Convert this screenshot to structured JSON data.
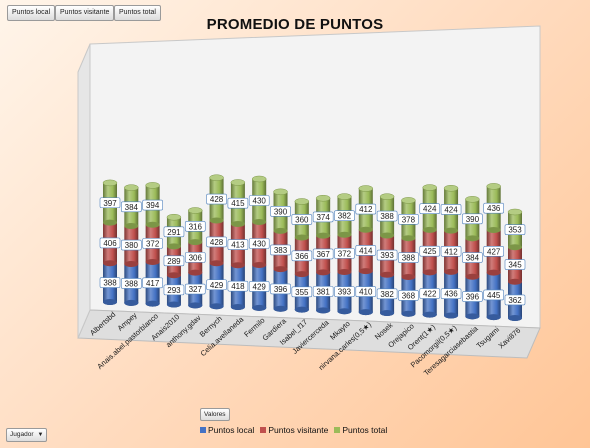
{
  "pivot_buttons": [
    "Puntos local",
    "Puntos visitante",
    "Puntos total"
  ],
  "valores_label": "Valores",
  "jugador_label": "Jugador",
  "colors": {
    "local": "#4472c4",
    "visitante": "#c0504d",
    "total": "#9bbb59"
  },
  "chart_data": {
    "type": "bar",
    "stacked": true,
    "style": "3d-cylinder",
    "title": "PROMEDIO DE PUNTOS",
    "xlabel": "",
    "ylabel": "",
    "legend_position": "bottom",
    "categories": [
      "Albertsbd",
      "Ampey",
      "Anais.abel.pastorblanco",
      "Anais2010",
      "anthony.gdav",
      "Bernych",
      "Celia.avellaneda",
      "Fermilo",
      "Gardiera",
      "Isabel_f17",
      "Javiercerceda",
      "Mkayto",
      "nirvana.carles(0,5★)",
      "Nosek",
      "Orejapico",
      "Orent(1★)",
      "Pacomorgil(0,5★)",
      "Teresagarciasebastia",
      "Tsugami",
      "Xavi876"
    ],
    "series": [
      {
        "name": "Puntos local",
        "values": [
          388,
          388,
          417,
          293,
          327,
          429,
          418,
          429,
          396,
          355,
          381,
          393,
          410,
          382,
          368,
          422,
          436,
          396,
          445,
          362
        ]
      },
      {
        "name": "Puntos visitante",
        "values": [
          406,
          380,
          372,
          289,
          306,
          428,
          413,
          430,
          383,
          366,
          367,
          372,
          414,
          393,
          388,
          425,
          412,
          384,
          427,
          345
        ]
      },
      {
        "name": "Puntos total",
        "values": [
          397,
          384,
          394,
          291,
          316,
          428,
          415,
          430,
          390,
          360,
          374,
          382,
          412,
          388,
          378,
          424,
          424,
          390,
          436,
          353
        ]
      }
    ]
  }
}
